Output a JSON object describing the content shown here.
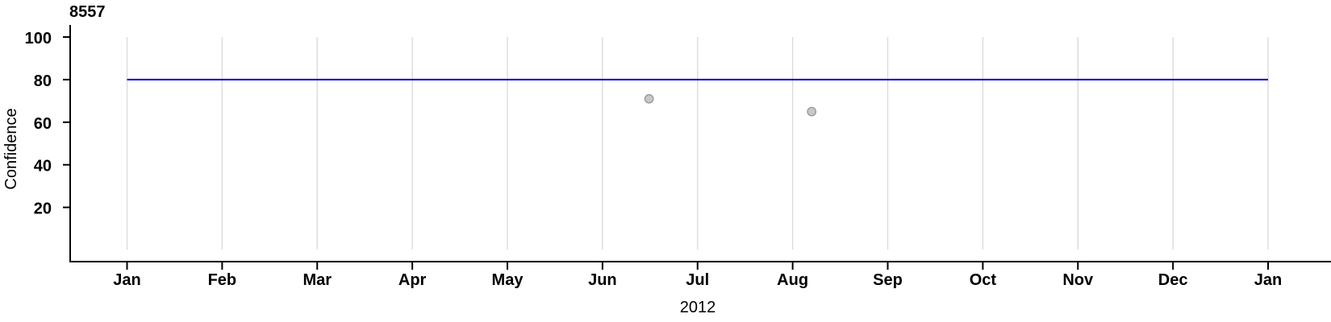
{
  "chart_data": {
    "type": "scatter",
    "title": "8557",
    "ylabel": "Confidence",
    "year_label": "2012",
    "x_tick_labels": [
      "Jan",
      "Feb",
      "Mar",
      "Apr",
      "May",
      "Jun",
      "Jul",
      "Aug",
      "Sep",
      "Oct",
      "Nov",
      "Dec",
      "Jan"
    ],
    "x_range_months": 12,
    "y_ticks": [
      20,
      40,
      60,
      80,
      100
    ],
    "ylim": [
      0,
      100
    ],
    "grid": "vertical-monthly-gridlines",
    "legend": "none",
    "reference_line": {
      "value": 80,
      "start_month_index": 0,
      "end_month_index": 12,
      "color": "#0000CD"
    },
    "points": [
      {
        "date_estimate": "2012-06-15",
        "month_index": 5.49,
        "value": 71
      },
      {
        "date_estimate": "2012-08-07",
        "month_index": 7.2,
        "value": 65
      }
    ],
    "colors": {
      "axis": "#000000",
      "grid": "#DBDBDB",
      "reference_line": "#0000CD",
      "point_fill": "#C8C8C8",
      "point_stroke": "#969696",
      "text": "#000000",
      "background": "#FFFFFF"
    }
  }
}
